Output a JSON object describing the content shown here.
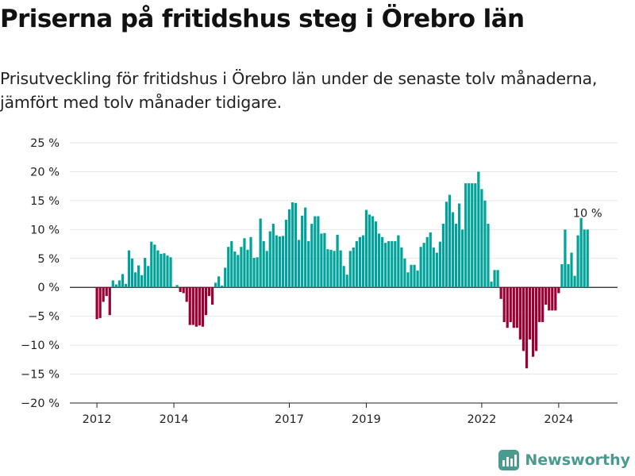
{
  "title": "Priserna på fritidshus steg i Örebro län",
  "subtitle": "Prisutveckling för fritidshus i Örebro län under de senaste tolv månaderna, jämfört med tolv månader tidigare.",
  "brand": {
    "name": "Newsworthy",
    "icon": "newsworthy-logo-icon",
    "color": "#4a9a8e"
  },
  "colors": {
    "positive": "#00a39a",
    "negative": "#990033",
    "zero_line": "#222222",
    "grid": "#e6e6e6"
  },
  "chart_data": {
    "type": "bar",
    "x_start": "2012-01",
    "x_end": "2024-12",
    "ylim": [
      -20,
      25
    ],
    "yticks": [
      -20,
      -15,
      -10,
      -5,
      0,
      5,
      10,
      15,
      20,
      25
    ],
    "ytick_labels": [
      "−20 %",
      "−15 %",
      "−10 %",
      "−5 %",
      "0 %",
      "5 %",
      "10 %",
      "15 %",
      "20 %",
      "25 %"
    ],
    "xticks": [
      "2012",
      "2014",
      "2017",
      "2019",
      "2022",
      "2024"
    ],
    "grid": true,
    "annotation": {
      "x": "2024-10",
      "text": "10 %"
    },
    "values": [
      -5.5,
      -5.3,
      -2.5,
      -1.5,
      -4.8,
      1.2,
      0.5,
      1.2,
      2.3,
      0.6,
      6.4,
      5.0,
      2.6,
      3.8,
      2.1,
      5.1,
      3.7,
      7.9,
      7.4,
      6.4,
      5.8,
      5.9,
      5.5,
      5.2,
      0,
      0.4,
      -0.8,
      -1.0,
      -2.5,
      -6.5,
      -6.5,
      -6.8,
      -6.6,
      -6.8,
      -4.8,
      -1.5,
      -3.0,
      0.8,
      1.9,
      0.3,
      3.4,
      7.0,
      8.0,
      6.2,
      5.6,
      7.0,
      8.5,
      6.5,
      8.7,
      5.1,
      5.2,
      11.9,
      8.0,
      6.3,
      9.7,
      11.0,
      9.0,
      8.8,
      8.9,
      11.7,
      13.5,
      14.7,
      14.6,
      8.2,
      12.4,
      13.8,
      8.0,
      11.0,
      12.3,
      12.3,
      9.3,
      9.4,
      6.6,
      6.5,
      6.3,
      9.1,
      6.4,
      3.7,
      2.2,
      6.3,
      6.9,
      8.0,
      8.7,
      9.0,
      13.4,
      12.6,
      12.3,
      11.4,
      9.3,
      8.7,
      7.7,
      8.0,
      8.0,
      8.0,
      9.0,
      6.9,
      5.0,
      2.6,
      3.9,
      3.9,
      2.9,
      7.0,
      7.7,
      8.7,
      9.5,
      6.9,
      6.0,
      7.9,
      11.0,
      14.8,
      16.0,
      13.0,
      11.0,
      14.5,
      10.0,
      18.0,
      18.0,
      18.0,
      18.0,
      20.0,
      17.0,
      15.0,
      11.0,
      1.0,
      3.0,
      3.0,
      -2.0,
      -6.0,
      -7.0,
      -6.0,
      -7.0,
      -7.0,
      -9.0,
      -11.0,
      -14.0,
      -9.0,
      -12.0,
      -11.0,
      -6.0,
      -6.0,
      -3.0,
      -4.0,
      -4.0,
      -4.0,
      -1.0,
      4.0,
      10.0,
      4.0,
      6.0,
      2.0,
      9.0,
      12.0,
      10.0,
      10.0
    ]
  }
}
